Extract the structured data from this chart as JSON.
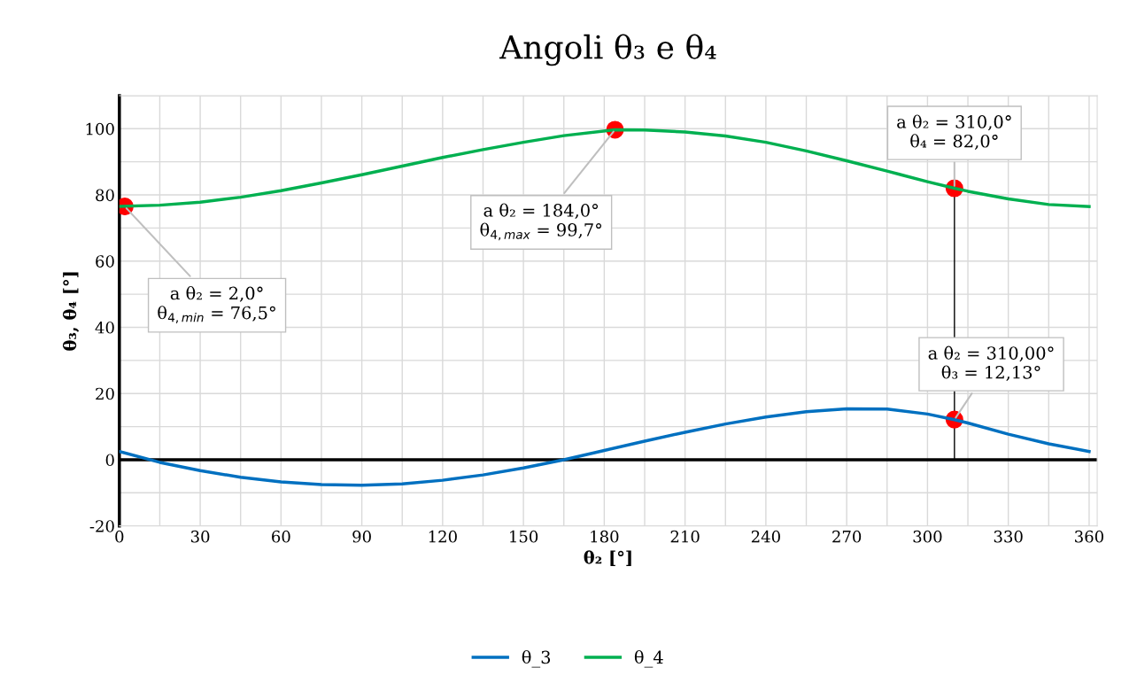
{
  "chart_data": {
    "type": "line",
    "title": "Angoli θ₃ e θ₄",
    "xlabel": "θ₂ [°]",
    "ylabel": "θ₃, θ₄ [°]",
    "xlim": [
      0,
      363
    ],
    "ylim": [
      -20,
      110
    ],
    "xticks": [
      0,
      {
        "value": 15,
        "label": null
      },
      30,
      {
        "value": 45,
        "label": null
      },
      60,
      {
        "value": 75,
        "label": null
      },
      90,
      {
        "value": 105,
        "label": null
      },
      120,
      {
        "value": 135,
        "label": null
      },
      150,
      {
        "value": 165,
        "label": null
      },
      180,
      {
        "value": 195,
        "label": null
      },
      210,
      {
        "value": 225,
        "label": null
      },
      240,
      {
        "value": 255,
        "label": null
      },
      270,
      {
        "value": 285,
        "label": null
      },
      300,
      {
        "value": 315,
        "label": null
      },
      330,
      {
        "value": 345,
        "label": null
      },
      360
    ],
    "yticks": [
      -20,
      {
        "value": -10,
        "label": null
      },
      0,
      {
        "value": 10,
        "label": null
      },
      20,
      {
        "value": 30,
        "label": null
      },
      40,
      {
        "value": 50,
        "label": null
      },
      60,
      {
        "value": 70,
        "label": null
      },
      80,
      {
        "value": 90,
        "label": null
      },
      100,
      {
        "value": 110,
        "label": null
      }
    ],
    "grid": true,
    "legend": "bottom",
    "marker": "none",
    "line_style": "solid",
    "series": [
      {
        "name": "θ_3",
        "color": "#0070c0",
        "x": [
          0,
          15,
          30,
          45,
          60,
          75,
          90,
          105,
          120,
          135,
          150,
          165,
          180,
          195,
          210,
          225,
          240,
          255,
          270,
          285,
          300,
          310,
          315,
          330,
          345,
          360
        ],
        "values": [
          2.5,
          -0.8,
          -3.3,
          -5.3,
          -6.7,
          -7.5,
          -7.7,
          -7.3,
          -6.2,
          -4.6,
          -2.5,
          0,
          2.8,
          5.6,
          8.3,
          10.8,
          12.9,
          14.5,
          15.4,
          15.3,
          13.8,
          12.1,
          11.1,
          7.7,
          4.8,
          2.5
        ]
      },
      {
        "name": "θ_4",
        "color": "#00b050",
        "x": [
          0,
          15,
          30,
          45,
          60,
          75,
          90,
          105,
          120,
          135,
          150,
          165,
          184,
          195,
          210,
          225,
          240,
          255,
          270,
          285,
          300,
          310,
          315,
          330,
          345,
          360
        ],
        "values": [
          76.5,
          76.9,
          77.8,
          79.3,
          81.3,
          83.6,
          86.1,
          88.7,
          91.3,
          93.7,
          95.9,
          97.9,
          99.7,
          99.6,
          99.0,
          97.8,
          95.9,
          93.3,
          90.3,
          87.2,
          84.0,
          82.0,
          81.1,
          78.8,
          77.1,
          76.5
        ]
      },
      {
        "type": "line",
        "color": "#000000",
        "x": [
          310,
          310
        ],
        "values": [
          0,
          82.0
        ]
      },
      {
        "type": "scatter",
        "color": "#ff0000",
        "marker": "circle",
        "x": [
          2,
          184,
          310,
          310
        ],
        "values": [
          76.5,
          99.7,
          82.0,
          12.13
        ]
      }
    ],
    "ref_lines": [
      {
        "axis": "y",
        "value": 0,
        "color": "#000000"
      }
    ],
    "annotations": [
      {
        "text": "a θ₂ = 2,0°\nθ$_{4,min}$ = 76,5°",
        "x": 2,
        "y": 76.5
      },
      {
        "text": "a θ₂ = 184,0°\nθ$_{4,max}$ = 99,7°",
        "x": 184,
        "y": 99.7
      },
      {
        "text": "a θ₂ = 310,0°\nθ₄ = 82,0°",
        "x": 310,
        "y": 82.0
      },
      {
        "text": "a θ₂ = 310,00°\nθ₃ = 12,13°",
        "x": 310,
        "y": 12.13
      }
    ]
  }
}
